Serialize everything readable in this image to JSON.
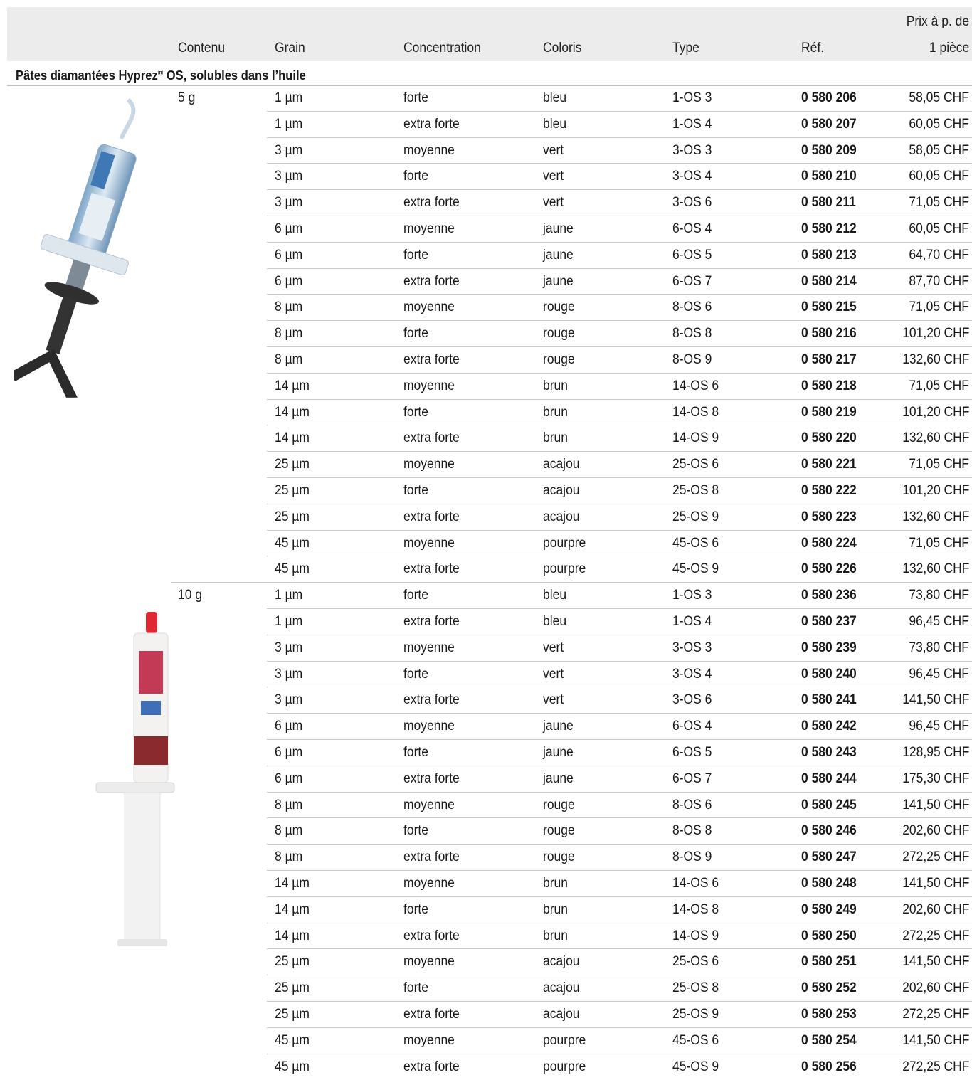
{
  "header": {
    "contenu": "Contenu",
    "grain": "Grain",
    "concentration": "Concentration",
    "coloris": "Coloris",
    "type": "Type",
    "ref": "Réf.",
    "prix_line1": "Prix à p. de",
    "prix_line2": "1 pièce"
  },
  "section": {
    "title": "Pâtes diamantées Hyprez",
    "title_sup": "®",
    "title_rest": " OS, solubles dans l’huile"
  },
  "groups": [
    {
      "contenu": "5 g",
      "image_icon": "blue-syringe-icon",
      "rows": [
        {
          "grain": "1 µm",
          "concentration": "forte",
          "coloris": "bleu",
          "type": "1-OS 3",
          "ref": "0 580 206",
          "prix": "58,05 CHF"
        },
        {
          "grain": "1 µm",
          "concentration": "extra forte",
          "coloris": "bleu",
          "type": "1-OS 4",
          "ref": "0 580 207",
          "prix": "60,05 CHF"
        },
        {
          "grain": "3 µm",
          "concentration": "moyenne",
          "coloris": "vert",
          "type": "3-OS 3",
          "ref": "0 580 209",
          "prix": "58,05 CHF"
        },
        {
          "grain": "3 µm",
          "concentration": "forte",
          "coloris": "vert",
          "type": "3-OS 4",
          "ref": "0 580 210",
          "prix": "60,05 CHF"
        },
        {
          "grain": "3 µm",
          "concentration": "extra forte",
          "coloris": "vert",
          "type": "3-OS 6",
          "ref": "0 580 211",
          "prix": "71,05 CHF"
        },
        {
          "grain": "6 µm",
          "concentration": "moyenne",
          "coloris": "jaune",
          "type": "6-OS 4",
          "ref": "0 580 212",
          "prix": "60,05 CHF"
        },
        {
          "grain": "6 µm",
          "concentration": "forte",
          "coloris": "jaune",
          "type": "6-OS 5",
          "ref": "0 580 213",
          "prix": "64,70 CHF"
        },
        {
          "grain": "6 µm",
          "concentration": "extra forte",
          "coloris": "jaune",
          "type": "6-OS 7",
          "ref": "0 580 214",
          "prix": "87,70 CHF"
        },
        {
          "grain": "8 µm",
          "concentration": "moyenne",
          "coloris": "rouge",
          "type": "8-OS 6",
          "ref": "0 580 215",
          "prix": "71,05 CHF"
        },
        {
          "grain": "8 µm",
          "concentration": "forte",
          "coloris": "rouge",
          "type": "8-OS 8",
          "ref": "0 580 216",
          "prix": "101,20 CHF"
        },
        {
          "grain": "8 µm",
          "concentration": "extra forte",
          "coloris": "rouge",
          "type": "8-OS 9",
          "ref": "0 580 217",
          "prix": "132,60 CHF"
        },
        {
          "grain": "14 µm",
          "concentration": "moyenne",
          "coloris": "brun",
          "type": "14-OS 6",
          "ref": "0 580 218",
          "prix": "71,05 CHF"
        },
        {
          "grain": "14 µm",
          "concentration": "forte",
          "coloris": "brun",
          "type": "14-OS 8",
          "ref": "0 580 219",
          "prix": "101,20 CHF"
        },
        {
          "grain": "14 µm",
          "concentration": "extra forte",
          "coloris": "brun",
          "type": "14-OS 9",
          "ref": "0 580 220",
          "prix": "132,60 CHF"
        },
        {
          "grain": "25 µm",
          "concentration": "moyenne",
          "coloris": "acajou",
          "type": "25-OS 6",
          "ref": "0 580 221",
          "prix": "71,05 CHF"
        },
        {
          "grain": "25 µm",
          "concentration": "forte",
          "coloris": "acajou",
          "type": "25-OS 8",
          "ref": "0 580 222",
          "prix": "101,20 CHF"
        },
        {
          "grain": "25 µm",
          "concentration": "extra forte",
          "coloris": "acajou",
          "type": "25-OS 9",
          "ref": "0 580 223",
          "prix": "132,60 CHF"
        },
        {
          "grain": "45 µm",
          "concentration": "moyenne",
          "coloris": "pourpre",
          "type": "45-OS 6",
          "ref": "0 580 224",
          "prix": "71,05 CHF"
        },
        {
          "grain": "45 µm",
          "concentration": "extra forte",
          "coloris": "pourpre",
          "type": "45-OS 9",
          "ref": "0 580 226",
          "prix": "132,60 CHF"
        }
      ]
    },
    {
      "contenu": "10 g",
      "image_icon": "red-syringe-icon",
      "rows": [
        {
          "grain": "1 µm",
          "concentration": "forte",
          "coloris": "bleu",
          "type": "1-OS 3",
          "ref": "0 580 236",
          "prix": "73,80 CHF"
        },
        {
          "grain": "1 µm",
          "concentration": "extra forte",
          "coloris": "bleu",
          "type": "1-OS 4",
          "ref": "0 580 237",
          "prix": "96,45 CHF"
        },
        {
          "grain": "3 µm",
          "concentration": "moyenne",
          "coloris": "vert",
          "type": "3-OS 3",
          "ref": "0 580 239",
          "prix": "73,80 CHF"
        },
        {
          "grain": "3 µm",
          "concentration": "forte",
          "coloris": "vert",
          "type": "3-OS 4",
          "ref": "0 580 240",
          "prix": "96,45 CHF"
        },
        {
          "grain": "3 µm",
          "concentration": "extra forte",
          "coloris": "vert",
          "type": "3-OS 6",
          "ref": "0 580 241",
          "prix": "141,50 CHF"
        },
        {
          "grain": "6 µm",
          "concentration": "moyenne",
          "coloris": "jaune",
          "type": "6-OS 4",
          "ref": "0 580 242",
          "prix": "96,45 CHF"
        },
        {
          "grain": "6 µm",
          "concentration": "forte",
          "coloris": "jaune",
          "type": "6-OS 5",
          "ref": "0 580 243",
          "prix": "128,95 CHF"
        },
        {
          "grain": "6 µm",
          "concentration": "extra forte",
          "coloris": "jaune",
          "type": "6-OS 7",
          "ref": "0 580 244",
          "prix": "175,30 CHF"
        },
        {
          "grain": "8 µm",
          "concentration": "moyenne",
          "coloris": "rouge",
          "type": "8-OS 6",
          "ref": "0 580 245",
          "prix": "141,50 CHF"
        },
        {
          "grain": "8 µm",
          "concentration": "forte",
          "coloris": "rouge",
          "type": "8-OS 8",
          "ref": "0 580 246",
          "prix": "202,60 CHF"
        },
        {
          "grain": "8 µm",
          "concentration": "extra forte",
          "coloris": "rouge",
          "type": "8-OS 9",
          "ref": "0 580 247",
          "prix": "272,25 CHF"
        },
        {
          "grain": "14 µm",
          "concentration": "moyenne",
          "coloris": "brun",
          "type": "14-OS 6",
          "ref": "0 580 248",
          "prix": "141,50 CHF"
        },
        {
          "grain": "14 µm",
          "concentration": "forte",
          "coloris": "brun",
          "type": "14-OS 8",
          "ref": "0 580 249",
          "prix": "202,60 CHF"
        },
        {
          "grain": "14 µm",
          "concentration": "extra forte",
          "coloris": "brun",
          "type": "14-OS 9",
          "ref": "0 580 250",
          "prix": "272,25 CHF"
        },
        {
          "grain": "25 µm",
          "concentration": "moyenne",
          "coloris": "acajou",
          "type": "25-OS 6",
          "ref": "0 580 251",
          "prix": "141,50 CHF"
        },
        {
          "grain": "25 µm",
          "concentration": "forte",
          "coloris": "acajou",
          "type": "25-OS 8",
          "ref": "0 580 252",
          "prix": "202,60 CHF"
        },
        {
          "grain": "25 µm",
          "concentration": "extra forte",
          "coloris": "acajou",
          "type": "25-OS 9",
          "ref": "0 580 253",
          "prix": "272,25 CHF"
        },
        {
          "grain": "45 µm",
          "concentration": "moyenne",
          "coloris": "pourpre",
          "type": "45-OS 6",
          "ref": "0 580 254",
          "prix": "141,50 CHF"
        },
        {
          "grain": "45 µm",
          "concentration": "extra forte",
          "coloris": "pourpre",
          "type": "45-OS 9",
          "ref": "0 580 256",
          "prix": "272,25 CHF"
        }
      ]
    }
  ]
}
